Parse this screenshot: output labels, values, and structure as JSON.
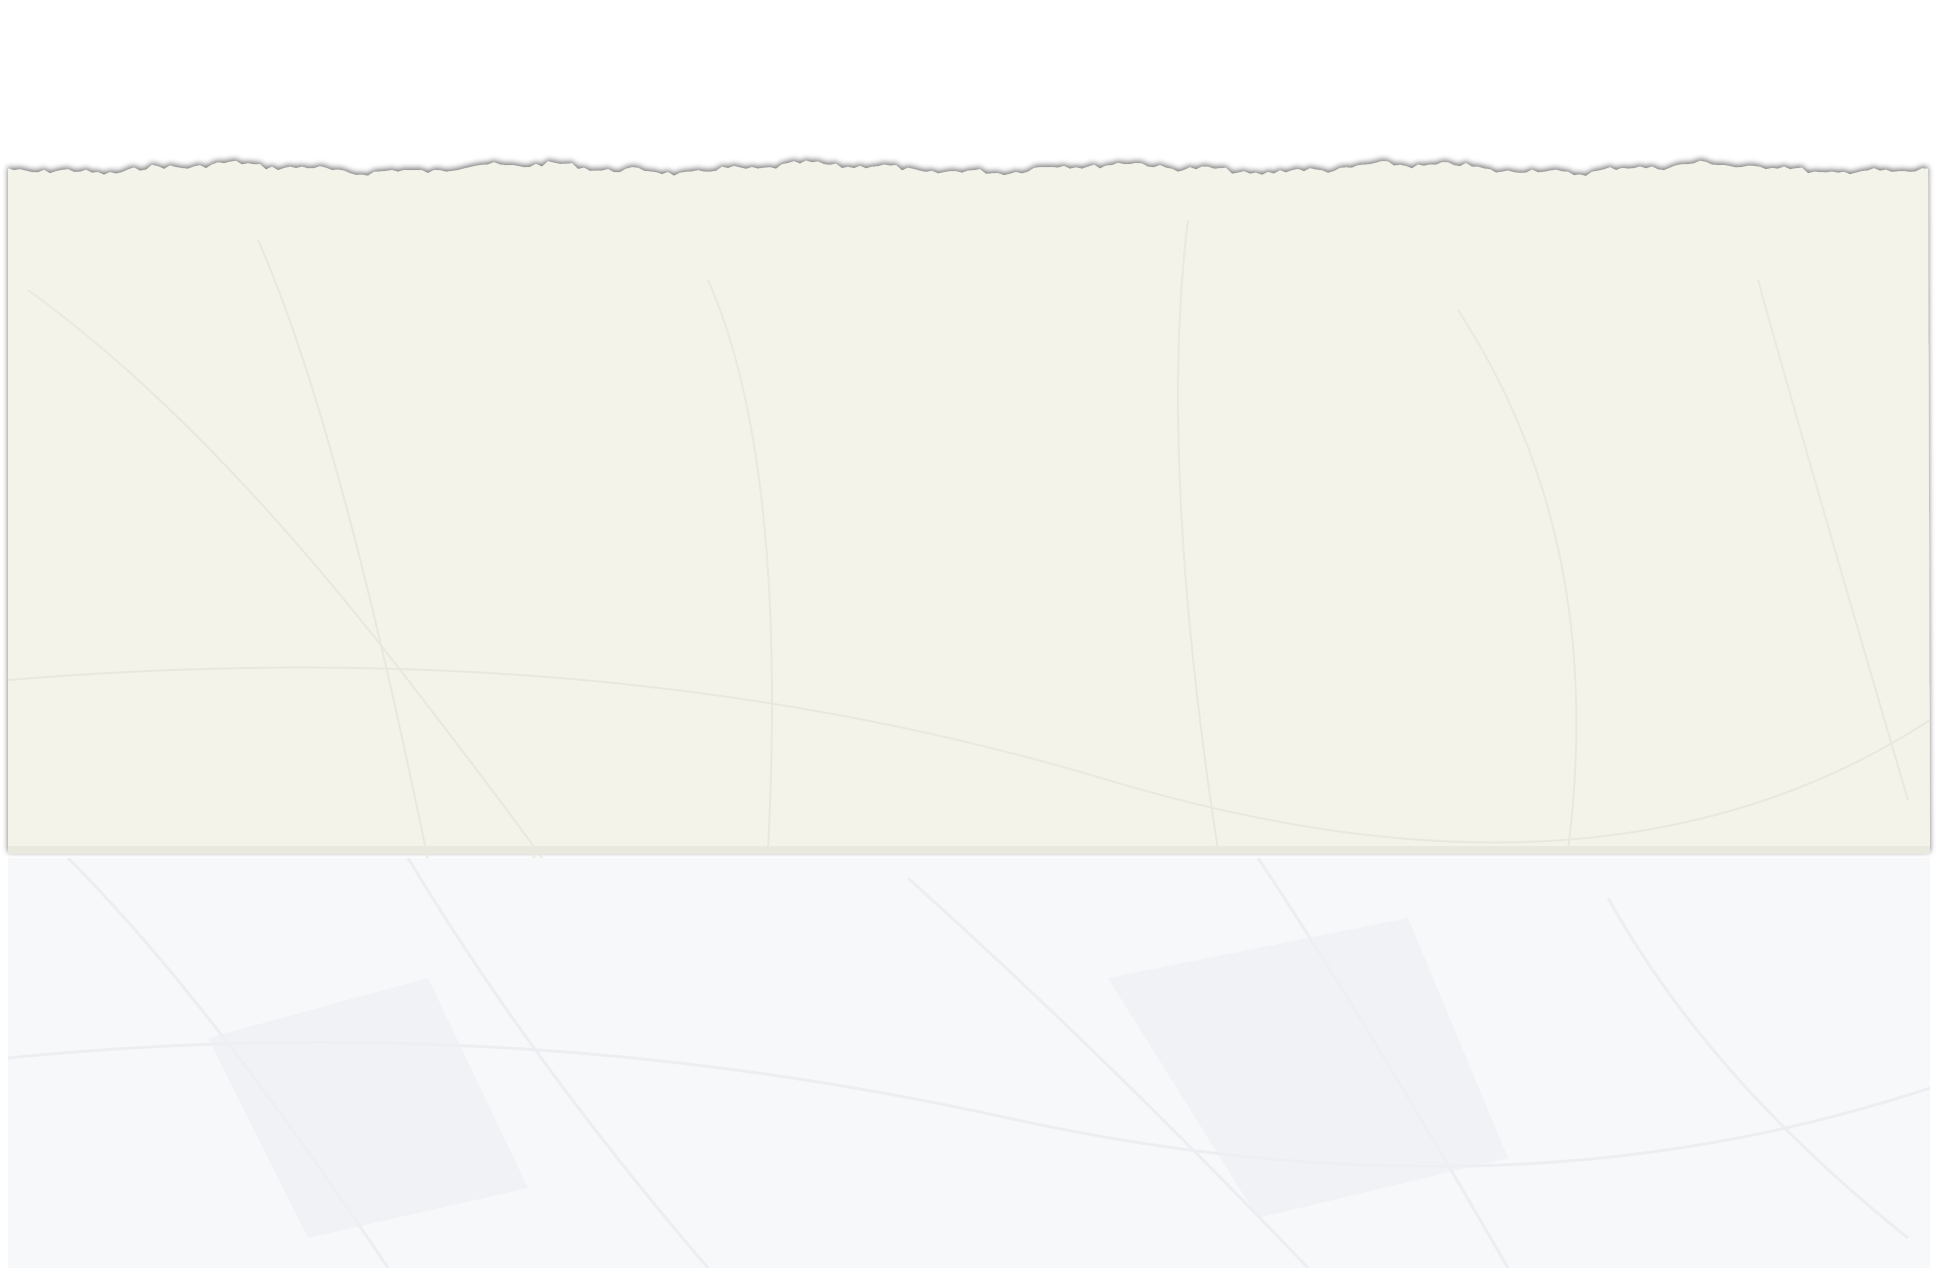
{
  "colors": {
    "background": "#ffffff",
    "paper_cream": "#f3f3ea",
    "paper_cream_shade": "#ebebe0",
    "paper_white": "#f7f8fa",
    "paper_white_shade": "#eef0f3",
    "torn_edge_shadow": "#bdbdb6"
  }
}
